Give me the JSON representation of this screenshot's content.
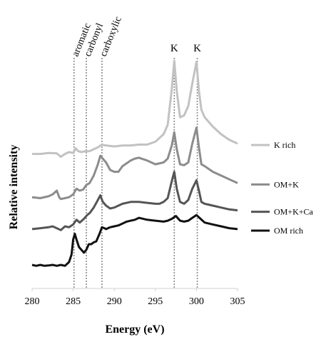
{
  "chart_data": {
    "type": "line",
    "xlabel": "Energy (eV)",
    "ylabel": "Relative intensity",
    "xlim": [
      280,
      305
    ],
    "x_ticks": [
      "280",
      "285",
      "290",
      "295",
      "300",
      "305"
    ],
    "y_ticks_shown": false,
    "grid": false,
    "legend_position": "right",
    "vertical_markers": [
      {
        "label": "aromatic",
        "x": 285.1
      },
      {
        "label": "carbonyl",
        "x": 286.6
      },
      {
        "label": "carboxylic",
        "x": 288.5
      },
      {
        "label": "K",
        "x": 297.3
      },
      {
        "label": "K",
        "x": 300.1
      }
    ],
    "series": [
      {
        "name": "K rich",
        "color": "#c2c2c2",
        "points": [
          [
            280,
            6.85
          ],
          [
            281,
            6.85
          ],
          [
            282,
            6.9
          ],
          [
            283,
            6.88
          ],
          [
            283.5,
            6.7
          ],
          [
            284,
            6.85
          ],
          [
            284.5,
            6.95
          ],
          [
            285,
            6.9
          ],
          [
            285.3,
            7.15
          ],
          [
            285.6,
            7.0
          ],
          [
            286,
            6.95
          ],
          [
            286.5,
            7.0
          ],
          [
            287,
            7.0
          ],
          [
            287.5,
            7.1
          ],
          [
            288,
            7.2
          ],
          [
            288.5,
            7.35
          ],
          [
            289,
            7.3
          ],
          [
            290,
            7.25
          ],
          [
            291,
            7.3
          ],
          [
            292,
            7.3
          ],
          [
            293,
            7.35
          ],
          [
            294,
            7.35
          ],
          [
            295,
            7.5
          ],
          [
            295.5,
            7.7
          ],
          [
            296,
            7.9
          ],
          [
            296.5,
            8.4
          ],
          [
            297,
            10.3
          ],
          [
            297.3,
            11.8
          ],
          [
            297.6,
            10.2
          ],
          [
            298,
            8.8
          ],
          [
            298.5,
            8.9
          ],
          [
            299,
            9.4
          ],
          [
            299.5,
            10.6
          ],
          [
            300,
            11.75
          ],
          [
            300.3,
            10.2
          ],
          [
            300.6,
            9.2
          ],
          [
            301,
            8.8
          ],
          [
            302,
            8.3
          ],
          [
            303,
            7.9
          ],
          [
            304,
            7.6
          ],
          [
            305,
            7.4
          ]
        ]
      },
      {
        "name": "OM+K",
        "color": "#8c8c8c",
        "points": [
          [
            280,
            4.55
          ],
          [
            281,
            4.5
          ],
          [
            282,
            4.6
          ],
          [
            282.5,
            4.7
          ],
          [
            283,
            4.9
          ],
          [
            283.3,
            4.55
          ],
          [
            283.5,
            4.45
          ],
          [
            284,
            4.5
          ],
          [
            284.5,
            4.55
          ],
          [
            285,
            4.7
          ],
          [
            285.4,
            5.0
          ],
          [
            285.8,
            4.9
          ],
          [
            286.2,
            4.95
          ],
          [
            286.6,
            5.2
          ],
          [
            287,
            5.3
          ],
          [
            287.5,
            5.7
          ],
          [
            288,
            6.3
          ],
          [
            288.3,
            6.75
          ],
          [
            288.6,
            6.6
          ],
          [
            289,
            6.4
          ],
          [
            289.5,
            6.0
          ],
          [
            290,
            5.9
          ],
          [
            290.5,
            5.9
          ],
          [
            291,
            6.2
          ],
          [
            291.5,
            6.35
          ],
          [
            292,
            6.5
          ],
          [
            292.5,
            6.6
          ],
          [
            293,
            6.65
          ],
          [
            294,
            6.5
          ],
          [
            295,
            6.3
          ],
          [
            296,
            6.4
          ],
          [
            296.5,
            6.6
          ],
          [
            297,
            7.3
          ],
          [
            297.3,
            8.0
          ],
          [
            297.6,
            7.1
          ],
          [
            298,
            6.3
          ],
          [
            298.5,
            6.25
          ],
          [
            299,
            6.4
          ],
          [
            299.5,
            7.4
          ],
          [
            300,
            8.25
          ],
          [
            300.3,
            7.2
          ],
          [
            300.6,
            6.3
          ],
          [
            301,
            6.2
          ],
          [
            302,
            5.9
          ],
          [
            303,
            5.7
          ],
          [
            304,
            5.5
          ],
          [
            305,
            5.3
          ]
        ]
      },
      {
        "name": "OM+K+Ca",
        "color": "#555555",
        "points": [
          [
            280,
            2.85
          ],
          [
            281,
            2.9
          ],
          [
            282,
            2.95
          ],
          [
            282.5,
            3.0
          ],
          [
            283,
            2.9
          ],
          [
            283.5,
            2.8
          ],
          [
            284,
            3.0
          ],
          [
            284.5,
            2.95
          ],
          [
            285,
            3.1
          ],
          [
            285.4,
            3.35
          ],
          [
            285.8,
            3.2
          ],
          [
            286.3,
            3.4
          ],
          [
            286.7,
            3.6
          ],
          [
            287,
            3.7
          ],
          [
            287.5,
            4.0
          ],
          [
            288,
            4.4
          ],
          [
            288.3,
            4.65
          ],
          [
            288.6,
            4.3
          ],
          [
            289,
            4.1
          ],
          [
            289.5,
            3.95
          ],
          [
            290,
            4.0
          ],
          [
            290.5,
            4.1
          ],
          [
            291,
            4.2
          ],
          [
            292,
            4.3
          ],
          [
            293,
            4.3
          ],
          [
            294,
            4.25
          ],
          [
            295,
            4.2
          ],
          [
            295.5,
            4.2
          ],
          [
            296,
            4.3
          ],
          [
            296.5,
            4.5
          ],
          [
            297,
            5.4
          ],
          [
            297.3,
            5.9
          ],
          [
            297.6,
            5.0
          ],
          [
            298,
            4.3
          ],
          [
            298.5,
            4.2
          ],
          [
            299,
            4.4
          ],
          [
            299.5,
            5.0
          ],
          [
            300,
            5.45
          ],
          [
            300.3,
            4.9
          ],
          [
            300.6,
            4.3
          ],
          [
            301,
            4.2
          ],
          [
            302,
            4.1
          ],
          [
            303,
            4.0
          ],
          [
            304,
            3.9
          ],
          [
            305,
            3.85
          ]
        ]
      },
      {
        "name": "OM rich",
        "color": "#111111",
        "points": [
          [
            280,
            0.95
          ],
          [
            280.5,
            0.9
          ],
          [
            281,
            0.95
          ],
          [
            281.5,
            0.9
          ],
          [
            282,
            0.92
          ],
          [
            282.5,
            0.95
          ],
          [
            283,
            0.9
          ],
          [
            283.5,
            0.95
          ],
          [
            284,
            0.9
          ],
          [
            284.5,
            1.1
          ],
          [
            284.8,
            1.5
          ],
          [
            285,
            2.3
          ],
          [
            285.2,
            2.6
          ],
          [
            285.4,
            2.3
          ],
          [
            285.7,
            1.9
          ],
          [
            286,
            1.75
          ],
          [
            286.3,
            1.6
          ],
          [
            286.6,
            1.75
          ],
          [
            286.9,
            2.05
          ],
          [
            287.2,
            2.05
          ],
          [
            287.5,
            2.15
          ],
          [
            287.8,
            2.2
          ],
          [
            288,
            2.4
          ],
          [
            288.2,
            2.6
          ],
          [
            288.5,
            2.95
          ],
          [
            288.8,
            2.9
          ],
          [
            289,
            2.85
          ],
          [
            289.5,
            2.95
          ],
          [
            290,
            3.0
          ],
          [
            290.5,
            3.05
          ],
          [
            291,
            3.15
          ],
          [
            291.5,
            3.25
          ],
          [
            292,
            3.3
          ],
          [
            292.5,
            3.35
          ],
          [
            293,
            3.45
          ],
          [
            294,
            3.35
          ],
          [
            295,
            3.3
          ],
          [
            296,
            3.25
          ],
          [
            296.5,
            3.3
          ],
          [
            297,
            3.4
          ],
          [
            297.5,
            3.55
          ],
          [
            298,
            3.3
          ],
          [
            298.5,
            3.25
          ],
          [
            299,
            3.3
          ],
          [
            299.5,
            3.45
          ],
          [
            300,
            3.6
          ],
          [
            300.5,
            3.4
          ],
          [
            301,
            3.2
          ],
          [
            302,
            3.1
          ],
          [
            303,
            3.0
          ],
          [
            304,
            2.9
          ],
          [
            305,
            2.85
          ]
        ]
      }
    ]
  }
}
